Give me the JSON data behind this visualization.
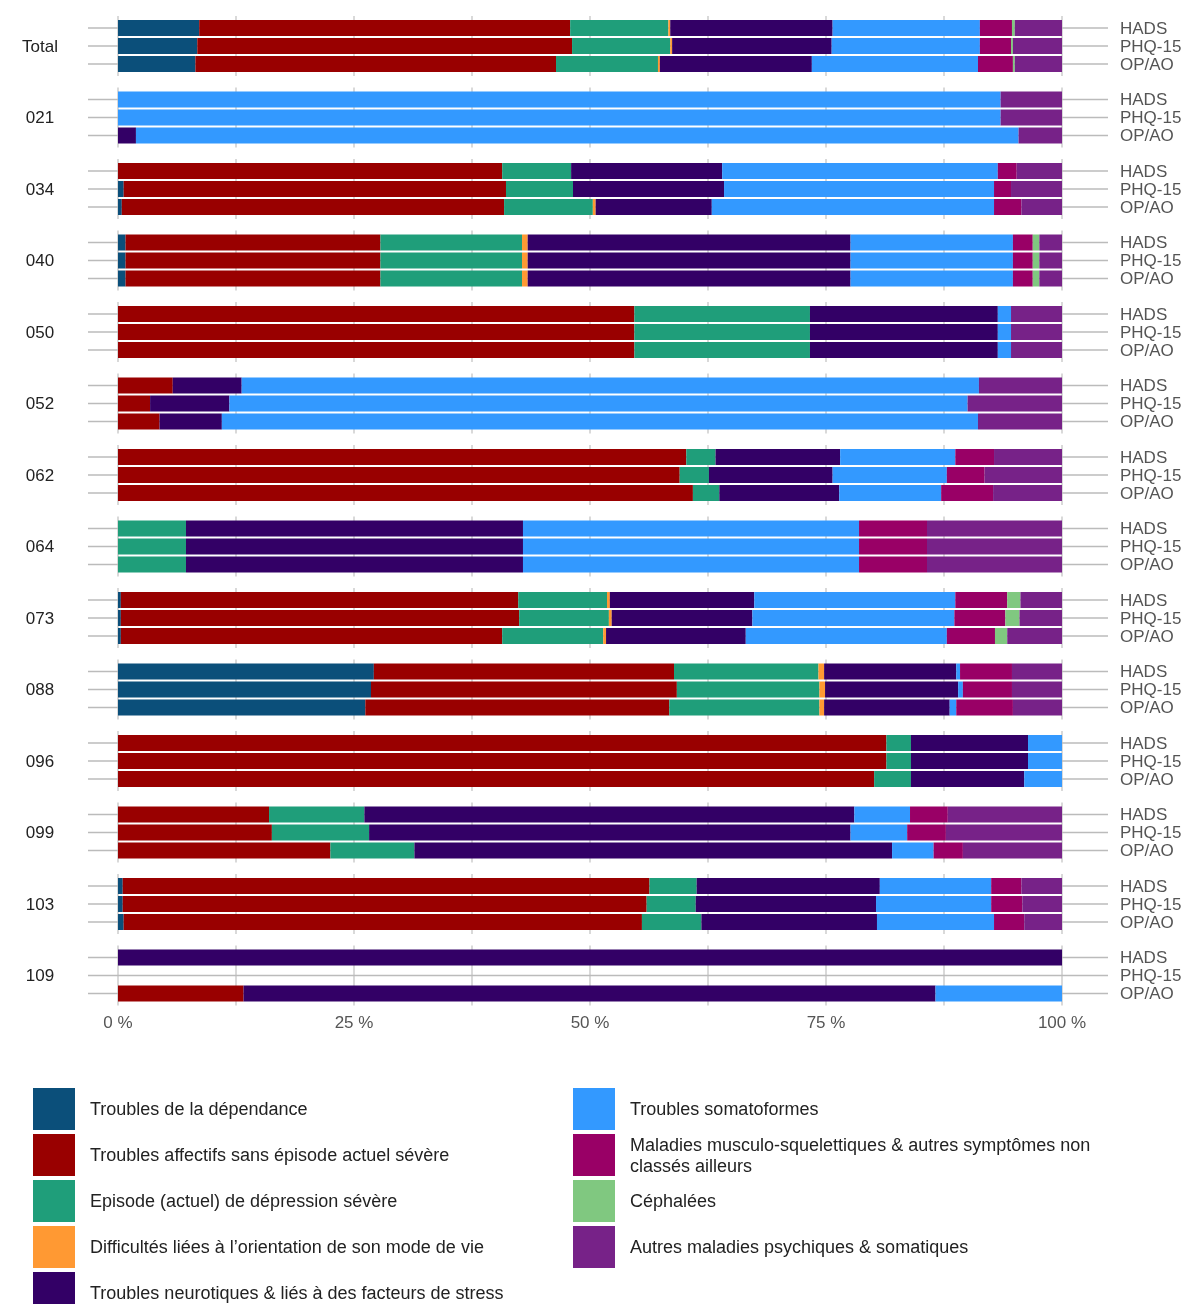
{
  "chart_data": [
    {
      "type": "bar",
      "orientation": "horizontal",
      "stacked": true,
      "title": "Total",
      "categories": [
        "HADS",
        "PHQ-15",
        "OP/AO"
      ],
      "xlim": [
        0,
        100
      ],
      "xticks": [
        {
          "value": 0,
          "label": null
        },
        {
          "value": 12.5,
          "label": null
        },
        {
          "value": 25,
          "label": null
        },
        {
          "value": 37.5,
          "label": null
        },
        {
          "value": 50,
          "label": null
        },
        {
          "value": 62.5,
          "label": null
        },
        {
          "value": 75,
          "label": null
        },
        {
          "value": 87.5,
          "label": null
        },
        {
          "value": 100,
          "label": null
        }
      ],
      "grid": true,
      "tick_labels": "y",
      "series": [
        {
          "color": "#0b4f7a",
          "values": [
            8.6,
            8.4,
            8.2
          ]
        },
        {
          "color": "#990000",
          "values": [
            39.3,
            39.7,
            38.2
          ]
        },
        {
          "color": "#1f9e7a",
          "values": [
            10.4,
            10.4,
            10.8
          ]
        },
        {
          "color": "#ff9933",
          "values": [
            0.2,
            0.2,
            0.2
          ]
        },
        {
          "color": "#330066",
          "values": [
            17.2,
            16.9,
            16.1
          ]
        },
        {
          "color": "#3399ff",
          "values": [
            15.6,
            15.7,
            17.6
          ]
        },
        {
          "color": "#990066",
          "values": [
            3.4,
            3.3,
            3.7
          ]
        },
        {
          "color": "#80c880",
          "values": [
            0.3,
            0.2,
            0.2
          ]
        },
        {
          "color": "#772288",
          "values": [
            5.0,
            5.2,
            5.0
          ]
        }
      ]
    },
    {
      "type": "bar",
      "orientation": "horizontal",
      "stacked": true,
      "title": "021",
      "categories": [
        "HADS",
        "PHQ-15",
        "OP/AO"
      ],
      "xlim": [
        0,
        100
      ],
      "xticks": [
        {
          "value": 0,
          "label": null
        },
        {
          "value": 12.5,
          "label": null
        },
        {
          "value": 25,
          "label": null
        },
        {
          "value": 37.5,
          "label": null
        },
        {
          "value": 50,
          "label": null
        },
        {
          "value": 62.5,
          "label": null
        },
        {
          "value": 75,
          "label": null
        },
        {
          "value": 87.5,
          "label": null
        },
        {
          "value": 100,
          "label": null
        }
      ],
      "grid": true,
      "tick_labels": "y",
      "series": [
        {
          "color": "#0b4f7a",
          "values": [
            0,
            0,
            0
          ]
        },
        {
          "color": "#990000",
          "values": [
            0,
            0,
            0
          ]
        },
        {
          "color": "#1f9e7a",
          "values": [
            0,
            0,
            0
          ]
        },
        {
          "color": "#ff9933",
          "values": [
            0,
            0,
            0
          ]
        },
        {
          "color": "#330066",
          "values": [
            0,
            0,
            1.9
          ]
        },
        {
          "color": "#3399ff",
          "values": [
            93.5,
            93.5,
            93.5
          ]
        },
        {
          "color": "#990066",
          "values": [
            0,
            0,
            0
          ]
        },
        {
          "color": "#80c880",
          "values": [
            0,
            0,
            0
          ]
        },
        {
          "color": "#772288",
          "values": [
            6.5,
            6.5,
            4.6
          ]
        }
      ]
    },
    {
      "type": "bar",
      "orientation": "horizontal",
      "stacked": true,
      "title": "034",
      "categories": [
        "HADS",
        "PHQ-15",
        "OP/AO"
      ],
      "xlim": [
        0,
        100
      ],
      "xticks": [
        {
          "value": 0,
          "label": null
        },
        {
          "value": 12.5,
          "label": null
        },
        {
          "value": 25,
          "label": null
        },
        {
          "value": 37.5,
          "label": null
        },
        {
          "value": 50,
          "label": null
        },
        {
          "value": 62.5,
          "label": null
        },
        {
          "value": 75,
          "label": null
        },
        {
          "value": 87.5,
          "label": null
        },
        {
          "value": 100,
          "label": null
        }
      ],
      "grid": true,
      "tick_labels": "y",
      "series": [
        {
          "color": "#0b4f7a",
          "values": [
            0,
            0.6,
            0.4
          ]
        },
        {
          "color": "#990000",
          "values": [
            40.7,
            40.5,
            40.5
          ]
        },
        {
          "color": "#1f9e7a",
          "values": [
            7.3,
            7.1,
            9.4
          ]
        },
        {
          "color": "#ff9933",
          "values": [
            0,
            0,
            0.3
          ]
        },
        {
          "color": "#330066",
          "values": [
            16.0,
            16.0,
            12.3
          ]
        },
        {
          "color": "#3399ff",
          "values": [
            29.2,
            28.6,
            29.9
          ]
        },
        {
          "color": "#990066",
          "values": [
            2.0,
            1.8,
            2.9
          ]
        },
        {
          "color": "#80c880",
          "values": [
            0,
            0,
            0
          ]
        },
        {
          "color": "#772288",
          "values": [
            4.8,
            5.4,
            4.3
          ]
        }
      ]
    },
    {
      "type": "bar",
      "orientation": "horizontal",
      "stacked": true,
      "title": "040",
      "categories": [
        "HADS",
        "PHQ-15",
        "OP/AO"
      ],
      "xlim": [
        0,
        100
      ],
      "xticks": [
        {
          "value": 0,
          "label": null
        },
        {
          "value": 12.5,
          "label": null
        },
        {
          "value": 25,
          "label": null
        },
        {
          "value": 37.5,
          "label": null
        },
        {
          "value": 50,
          "label": null
        },
        {
          "value": 62.5,
          "label": null
        },
        {
          "value": 75,
          "label": null
        },
        {
          "value": 87.5,
          "label": null
        },
        {
          "value": 100,
          "label": null
        }
      ],
      "grid": true,
      "tick_labels": "y",
      "series": [
        {
          "color": "#0b4f7a",
          "values": [
            0.8,
            0.8,
            0.8
          ]
        },
        {
          "color": "#990000",
          "values": [
            27.0,
            27.0,
            27.0
          ]
        },
        {
          "color": "#1f9e7a",
          "values": [
            15.0,
            15.0,
            15.0
          ]
        },
        {
          "color": "#ff9933",
          "values": [
            0.6,
            0.6,
            0.6
          ]
        },
        {
          "color": "#330066",
          "values": [
            34.2,
            34.2,
            34.2
          ]
        },
        {
          "color": "#3399ff",
          "values": [
            17.2,
            17.2,
            17.2
          ]
        },
        {
          "color": "#990066",
          "values": [
            2.1,
            2.1,
            2.1
          ]
        },
        {
          "color": "#80c880",
          "values": [
            0.7,
            0.7,
            0.7
          ]
        },
        {
          "color": "#772288",
          "values": [
            2.4,
            2.4,
            2.4
          ]
        }
      ]
    },
    {
      "type": "bar",
      "orientation": "horizontal",
      "stacked": true,
      "title": "050",
      "categories": [
        "HADS",
        "PHQ-15",
        "OP/AO"
      ],
      "xlim": [
        0,
        100
      ],
      "xticks": [
        {
          "value": 0,
          "label": null
        },
        {
          "value": 12.5,
          "label": null
        },
        {
          "value": 25,
          "label": null
        },
        {
          "value": 37.5,
          "label": null
        },
        {
          "value": 50,
          "label": null
        },
        {
          "value": 62.5,
          "label": null
        },
        {
          "value": 75,
          "label": null
        },
        {
          "value": 87.5,
          "label": null
        },
        {
          "value": 100,
          "label": null
        }
      ],
      "grid": true,
      "tick_labels": "y",
      "series": [
        {
          "color": "#0b4f7a",
          "values": [
            0,
            0,
            0
          ]
        },
        {
          "color": "#990000",
          "values": [
            54.7,
            54.7,
            54.7
          ]
        },
        {
          "color": "#1f9e7a",
          "values": [
            18.6,
            18.6,
            18.6
          ]
        },
        {
          "color": "#ff9933",
          "values": [
            0,
            0,
            0
          ]
        },
        {
          "color": "#330066",
          "values": [
            19.9,
            19.9,
            19.9
          ]
        },
        {
          "color": "#3399ff",
          "values": [
            1.4,
            1.4,
            1.4
          ]
        },
        {
          "color": "#990066",
          "values": [
            0,
            0,
            0
          ]
        },
        {
          "color": "#80c880",
          "values": [
            0,
            0,
            0
          ]
        },
        {
          "color": "#772288",
          "values": [
            5.4,
            5.4,
            5.4
          ]
        }
      ]
    },
    {
      "type": "bar",
      "orientation": "horizontal",
      "stacked": true,
      "title": "052",
      "categories": [
        "HADS",
        "PHQ-15",
        "OP/AO"
      ],
      "xlim": [
        0,
        100
      ],
      "xticks": [
        {
          "value": 0,
          "label": null
        },
        {
          "value": 12.5,
          "label": null
        },
        {
          "value": 25,
          "label": null
        },
        {
          "value": 37.5,
          "label": null
        },
        {
          "value": 50,
          "label": null
        },
        {
          "value": 62.5,
          "label": null
        },
        {
          "value": 75,
          "label": null
        },
        {
          "value": 87.5,
          "label": null
        },
        {
          "value": 100,
          "label": null
        }
      ],
      "grid": true,
      "tick_labels": "y",
      "series": [
        {
          "color": "#0b4f7a",
          "values": [
            0,
            0,
            0
          ]
        },
        {
          "color": "#990000",
          "values": [
            5.8,
            3.4,
            4.4
          ]
        },
        {
          "color": "#1f9e7a",
          "values": [
            0,
            0,
            0
          ]
        },
        {
          "color": "#ff9933",
          "values": [
            0,
            0,
            0
          ]
        },
        {
          "color": "#330066",
          "values": [
            7.3,
            8.4,
            6.6
          ]
        },
        {
          "color": "#3399ff",
          "values": [
            78.1,
            78.2,
            80.1
          ]
        },
        {
          "color": "#990066",
          "values": [
            0,
            0,
            0
          ]
        },
        {
          "color": "#80c880",
          "values": [
            0,
            0,
            0
          ]
        },
        {
          "color": "#772288",
          "values": [
            8.8,
            10.0,
            8.9
          ]
        }
      ]
    },
    {
      "type": "bar",
      "orientation": "horizontal",
      "stacked": true,
      "title": "062",
      "categories": [
        "HADS",
        "PHQ-15",
        "OP/AO"
      ],
      "xlim": [
        0,
        100
      ],
      "xticks": [
        {
          "value": 0,
          "label": null
        },
        {
          "value": 12.5,
          "label": null
        },
        {
          "value": 25,
          "label": null
        },
        {
          "value": 37.5,
          "label": null
        },
        {
          "value": 50,
          "label": null
        },
        {
          "value": 62.5,
          "label": null
        },
        {
          "value": 75,
          "label": null
        },
        {
          "value": 87.5,
          "label": null
        },
        {
          "value": 100,
          "label": null
        }
      ],
      "grid": true,
      "tick_labels": "y",
      "series": [
        {
          "color": "#0b4f7a",
          "values": [
            0,
            0,
            0
          ]
        },
        {
          "color": "#990000",
          "values": [
            60.2,
            59.5,
            60.9
          ]
        },
        {
          "color": "#1f9e7a",
          "values": [
            3.1,
            3.1,
            2.8
          ]
        },
        {
          "color": "#ff9933",
          "values": [
            0,
            0,
            0
          ]
        },
        {
          "color": "#330066",
          "values": [
            13.2,
            13.1,
            12.7
          ]
        },
        {
          "color": "#3399ff",
          "values": [
            12.2,
            12.1,
            10.8
          ]
        },
        {
          "color": "#990066",
          "values": [
            4.1,
            4.0,
            5.5
          ]
        },
        {
          "color": "#80c880",
          "values": [
            0,
            0,
            0
          ]
        },
        {
          "color": "#772288",
          "values": [
            7.2,
            8.2,
            7.3
          ]
        }
      ]
    },
    {
      "type": "bar",
      "orientation": "horizontal",
      "stacked": true,
      "title": "064",
      "categories": [
        "HADS",
        "PHQ-15",
        "OP/AO"
      ],
      "xlim": [
        0,
        100
      ],
      "xticks": [
        {
          "value": 0,
          "label": null
        },
        {
          "value": 12.5,
          "label": null
        },
        {
          "value": 25,
          "label": null
        },
        {
          "value": 37.5,
          "label": null
        },
        {
          "value": 50,
          "label": null
        },
        {
          "value": 62.5,
          "label": null
        },
        {
          "value": 75,
          "label": null
        },
        {
          "value": 87.5,
          "label": null
        },
        {
          "value": 100,
          "label": null
        }
      ],
      "grid": true,
      "tick_labels": "y",
      "series": [
        {
          "color": "#0b4f7a",
          "values": [
            0,
            0,
            0
          ]
        },
        {
          "color": "#990000",
          "values": [
            0,
            0,
            0
          ]
        },
        {
          "color": "#1f9e7a",
          "values": [
            7.2,
            7.2,
            7.2
          ]
        },
        {
          "color": "#ff9933",
          "values": [
            0,
            0,
            0
          ]
        },
        {
          "color": "#330066",
          "values": [
            35.7,
            35.7,
            35.7
          ]
        },
        {
          "color": "#3399ff",
          "values": [
            35.6,
            35.6,
            35.6
          ]
        },
        {
          "color": "#990066",
          "values": [
            7.2,
            7.2,
            7.2
          ]
        },
        {
          "color": "#80c880",
          "values": [
            0,
            0,
            0
          ]
        },
        {
          "color": "#772288",
          "values": [
            14.3,
            14.3,
            14.3
          ]
        }
      ]
    },
    {
      "type": "bar",
      "orientation": "horizontal",
      "stacked": true,
      "title": "073",
      "categories": [
        "HADS",
        "PHQ-15",
        "OP/AO"
      ],
      "xlim": [
        0,
        100
      ],
      "xticks": [
        {
          "value": 0,
          "label": null
        },
        {
          "value": 12.5,
          "label": null
        },
        {
          "value": 25,
          "label": null
        },
        {
          "value": 37.5,
          "label": null
        },
        {
          "value": 50,
          "label": null
        },
        {
          "value": 62.5,
          "label": null
        },
        {
          "value": 75,
          "label": null
        },
        {
          "value": 87.5,
          "label": null
        },
        {
          "value": 100,
          "label": null
        }
      ],
      "grid": true,
      "tick_labels": "y",
      "series": [
        {
          "color": "#0b4f7a",
          "values": [
            0.3,
            0.3,
            0.3
          ]
        },
        {
          "color": "#990000",
          "values": [
            42.1,
            42.2,
            40.4
          ]
        },
        {
          "color": "#1f9e7a",
          "values": [
            9.4,
            9.5,
            10.7
          ]
        },
        {
          "color": "#ff9933",
          "values": [
            0.3,
            0.3,
            0.3
          ]
        },
        {
          "color": "#330066",
          "values": [
            15.3,
            14.9,
            14.8
          ]
        },
        {
          "color": "#3399ff",
          "values": [
            21.3,
            21.4,
            21.3
          ]
        },
        {
          "color": "#990066",
          "values": [
            5.5,
            5.4,
            5.1
          ]
        },
        {
          "color": "#80c880",
          "values": [
            1.4,
            1.5,
            1.3
          ]
        },
        {
          "color": "#772288",
          "values": [
            4.4,
            4.5,
            5.8
          ]
        }
      ]
    },
    {
      "type": "bar",
      "orientation": "horizontal",
      "stacked": true,
      "title": "088",
      "categories": [
        "HADS",
        "PHQ-15",
        "OP/AO"
      ],
      "xlim": [
        0,
        100
      ],
      "xticks": [
        {
          "value": 0,
          "label": null
        },
        {
          "value": 12.5,
          "label": null
        },
        {
          "value": 25,
          "label": null
        },
        {
          "value": 37.5,
          "label": null
        },
        {
          "value": 50,
          "label": null
        },
        {
          "value": 62.5,
          "label": null
        },
        {
          "value": 75,
          "label": null
        },
        {
          "value": 87.5,
          "label": null
        },
        {
          "value": 100,
          "label": null
        }
      ],
      "grid": true,
      "tick_labels": "y",
      "series": [
        {
          "color": "#0b4f7a",
          "values": [
            27.1,
            26.8,
            26.2
          ]
        },
        {
          "color": "#990000",
          "values": [
            31.8,
            32.4,
            32.2
          ]
        },
        {
          "color": "#1f9e7a",
          "values": [
            15.3,
            15.1,
            15.9
          ]
        },
        {
          "color": "#ff9933",
          "values": [
            0.6,
            0.6,
            0.5
          ]
        },
        {
          "color": "#330066",
          "values": [
            14.0,
            14.1,
            13.3
          ]
        },
        {
          "color": "#3399ff",
          "values": [
            0.4,
            0.5,
            0.7
          ]
        },
        {
          "color": "#990066",
          "values": [
            5.5,
            5.2,
            6.0
          ]
        },
        {
          "color": "#80c880",
          "values": [
            0,
            0,
            0
          ]
        },
        {
          "color": "#772288",
          "values": [
            5.3,
            5.3,
            5.2
          ]
        }
      ]
    },
    {
      "type": "bar",
      "orientation": "horizontal",
      "stacked": true,
      "title": "096",
      "categories": [
        "HADS",
        "PHQ-15",
        "OP/AO"
      ],
      "xlim": [
        0,
        100
      ],
      "xticks": [
        {
          "value": 0,
          "label": null
        },
        {
          "value": 12.5,
          "label": null
        },
        {
          "value": 25,
          "label": null
        },
        {
          "value": 37.5,
          "label": null
        },
        {
          "value": 50,
          "label": null
        },
        {
          "value": 62.5,
          "label": null
        },
        {
          "value": 75,
          "label": null
        },
        {
          "value": 87.5,
          "label": null
        },
        {
          "value": 100,
          "label": null
        }
      ],
      "grid": true,
      "tick_labels": "y",
      "series": [
        {
          "color": "#0b4f7a",
          "values": [
            0,
            0,
            0
          ]
        },
        {
          "color": "#990000",
          "values": [
            81.4,
            81.4,
            80.1
          ]
        },
        {
          "color": "#1f9e7a",
          "values": [
            2.6,
            2.6,
            3.9
          ]
        },
        {
          "color": "#ff9933",
          "values": [
            0,
            0,
            0
          ]
        },
        {
          "color": "#330066",
          "values": [
            12.4,
            12.4,
            12.0
          ]
        },
        {
          "color": "#3399ff",
          "values": [
            3.6,
            3.6,
            4.0
          ]
        },
        {
          "color": "#990066",
          "values": [
            0,
            0,
            0
          ]
        },
        {
          "color": "#80c880",
          "values": [
            0,
            0,
            0
          ]
        },
        {
          "color": "#772288",
          "values": [
            0,
            0,
            0
          ]
        }
      ]
    },
    {
      "type": "bar",
      "orientation": "horizontal",
      "stacked": true,
      "title": "099",
      "categories": [
        "HADS",
        "PHQ-15",
        "OP/AO"
      ],
      "xlim": [
        0,
        100
      ],
      "xticks": [
        {
          "value": 0,
          "label": null
        },
        {
          "value": 12.5,
          "label": null
        },
        {
          "value": 25,
          "label": null
        },
        {
          "value": 37.5,
          "label": null
        },
        {
          "value": 50,
          "label": null
        },
        {
          "value": 62.5,
          "label": null
        },
        {
          "value": 75,
          "label": null
        },
        {
          "value": 87.5,
          "label": null
        },
        {
          "value": 100,
          "label": null
        }
      ],
      "grid": true,
      "tick_labels": "y",
      "series": [
        {
          "color": "#0b4f7a",
          "values": [
            0,
            0,
            0
          ]
        },
        {
          "color": "#990000",
          "values": [
            16.0,
            16.3,
            22.5
          ]
        },
        {
          "color": "#1f9e7a",
          "values": [
            10.1,
            10.3,
            8.9
          ]
        },
        {
          "color": "#ff9933",
          "values": [
            0,
            0,
            0
          ]
        },
        {
          "color": "#330066",
          "values": [
            51.9,
            51.0,
            50.6
          ]
        },
        {
          "color": "#3399ff",
          "values": [
            5.9,
            6.0,
            4.4
          ]
        },
        {
          "color": "#990066",
          "values": [
            4.0,
            4.1,
            3.1
          ]
        },
        {
          "color": "#80c880",
          "values": [
            0,
            0,
            0
          ]
        },
        {
          "color": "#772288",
          "values": [
            12.1,
            12.3,
            10.5
          ]
        }
      ]
    },
    {
      "type": "bar",
      "orientation": "horizontal",
      "stacked": true,
      "title": "103",
      "categories": [
        "HADS",
        "PHQ-15",
        "OP/AO"
      ],
      "xlim": [
        0,
        100
      ],
      "xticks": [
        {
          "value": 0,
          "label": null
        },
        {
          "value": 12.5,
          "label": null
        },
        {
          "value": 25,
          "label": null
        },
        {
          "value": 37.5,
          "label": null
        },
        {
          "value": 50,
          "label": null
        },
        {
          "value": 62.5,
          "label": null
        },
        {
          "value": 75,
          "label": null
        },
        {
          "value": 87.5,
          "label": null
        },
        {
          "value": 100,
          "label": null
        }
      ],
      "grid": true,
      "tick_labels": "y",
      "series": [
        {
          "color": "#0b4f7a",
          "values": [
            0.5,
            0.5,
            0.6
          ]
        },
        {
          "color": "#990000",
          "values": [
            55.8,
            55.5,
            54.9
          ]
        },
        {
          "color": "#1f9e7a",
          "values": [
            5.0,
            5.2,
            6.3
          ]
        },
        {
          "color": "#ff9933",
          "values": [
            0,
            0,
            0
          ]
        },
        {
          "color": "#330066",
          "values": [
            19.4,
            19.1,
            18.6
          ]
        },
        {
          "color": "#3399ff",
          "values": [
            11.8,
            12.2,
            12.4
          ]
        },
        {
          "color": "#990066",
          "values": [
            3.2,
            3.3,
            3.2
          ]
        },
        {
          "color": "#80c880",
          "values": [
            0,
            0,
            0
          ]
        },
        {
          "color": "#772288",
          "values": [
            4.3,
            4.2,
            4.0
          ]
        }
      ]
    },
    {
      "type": "bar",
      "orientation": "horizontal",
      "stacked": true,
      "title": "109",
      "categories": [
        "HADS",
        "PHQ-15",
        "OP/AO"
      ],
      "xlim": [
        0,
        100
      ],
      "xticks": [
        {
          "value": 0,
          "label": "0 %"
        },
        {
          "value": 12.5,
          "label": null
        },
        {
          "value": 25,
          "label": "25 %"
        },
        {
          "value": 37.5,
          "label": null
        },
        {
          "value": 50,
          "label": "50 %"
        },
        {
          "value": 62.5,
          "label": null
        },
        {
          "value": 75,
          "label": "75 %"
        },
        {
          "value": 87.5,
          "label": null
        },
        {
          "value": 100,
          "label": "100 %"
        }
      ],
      "grid": true,
      "legend": "bottom",
      "series": [
        {
          "name": "Troubles de la dépendance",
          "color": "#0b4f7a",
          "values": [
            0,
            null,
            0
          ]
        },
        {
          "name": "Troubles affectifs sans épisode actuel sévère",
          "color": "#990000",
          "values": [
            0,
            null,
            13.3
          ]
        },
        {
          "name": "Episode (actuel) de dépression sévère",
          "color": "#1f9e7a",
          "values": [
            0,
            null,
            0
          ]
        },
        {
          "name": "Difficultés liées à l’orientation de son mode de vie",
          "color": "#ff9933",
          "values": [
            0,
            null,
            0
          ]
        },
        {
          "name": "Troubles neurotiques & liés à des facteurs de stress",
          "color": "#330066",
          "values": [
            100,
            null,
            73.3
          ]
        },
        {
          "name": "Troubles somatoformes",
          "color": "#3399ff",
          "values": [
            0,
            null,
            13.4
          ]
        },
        {
          "name": "Maladies musculo-squelettiques & autres symptômes non classés ailleurs",
          "color": "#990066",
          "values": [
            0,
            null,
            0
          ]
        },
        {
          "name": "Céphalées",
          "color": "#80c880",
          "values": [
            0,
            null,
            0
          ]
        },
        {
          "name": "Autres maladies psychiques & somatiques",
          "color": "#772288",
          "values": [
            0,
            null,
            0
          ]
        }
      ]
    }
  ]
}
